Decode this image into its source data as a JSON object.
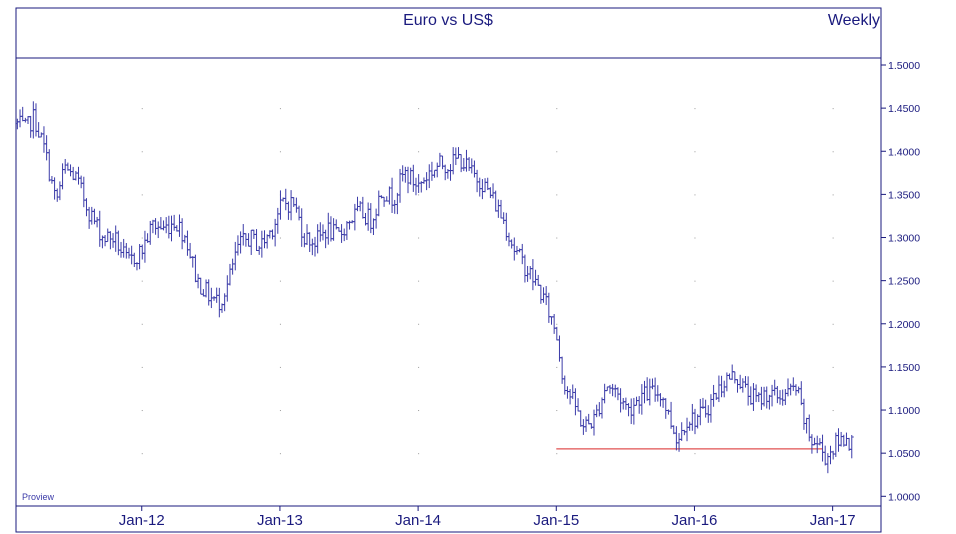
{
  "title": "Euro vs US$",
  "period_label": "Weekly",
  "watermark": "Proview",
  "colors": {
    "frame": "#1a1a7e",
    "bars": "#3a3aa8",
    "support_line": "#e05050",
    "grid": "#9a9a9a"
  },
  "chart_data": {
    "type": "ohlc",
    "title": "Euro vs US$",
    "period": "Weekly",
    "x_range": [
      2011.09,
      2017.35
    ],
    "ylim": [
      0.995,
      1.502
    ],
    "y_ticks": [
      "1.0000",
      "1.0500",
      "1.1000",
      "1.1500",
      "1.2000",
      "1.2500",
      "1.3000",
      "1.3500",
      "1.4000",
      "1.4500",
      "1.5000"
    ],
    "x_ticks": [
      {
        "label": "Jan-12",
        "x": 2012.0
      },
      {
        "label": "Jan-13",
        "x": 2013.0
      },
      {
        "label": "Jan-14",
        "x": 2014.0
      },
      {
        "label": "Jan-15",
        "x": 2015.0
      },
      {
        "label": "Jan-16",
        "x": 2016.0
      },
      {
        "label": "Jan-17",
        "x": 2017.0
      }
    ],
    "grid": "dotted",
    "price_path": [
      [
        2011.1,
        1.432
      ],
      [
        2011.16,
        1.425
      ],
      [
        2011.22,
        1.44
      ],
      [
        2011.3,
        1.4
      ],
      [
        2011.38,
        1.34
      ],
      [
        2011.44,
        1.38
      ],
      [
        2011.52,
        1.37
      ],
      [
        2011.62,
        1.33
      ],
      [
        2011.72,
        1.3
      ],
      [
        2011.8,
        1.3
      ],
      [
        2011.9,
        1.27
      ],
      [
        2012.0,
        1.285
      ],
      [
        2012.08,
        1.315
      ],
      [
        2012.16,
        1.31
      ],
      [
        2012.24,
        1.32
      ],
      [
        2012.32,
        1.3
      ],
      [
        2012.4,
        1.25
      ],
      [
        2012.5,
        1.23
      ],
      [
        2012.56,
        1.225
      ],
      [
        2012.62,
        1.245
      ],
      [
        2012.7,
        1.29
      ],
      [
        2012.78,
        1.3
      ],
      [
        2012.86,
        1.29
      ],
      [
        2012.94,
        1.31
      ],
      [
        2013.02,
        1.34
      ],
      [
        2013.1,
        1.34
      ],
      [
        2013.18,
        1.3
      ],
      [
        2013.26,
        1.295
      ],
      [
        2013.34,
        1.31
      ],
      [
        2013.42,
        1.3
      ],
      [
        2013.5,
        1.32
      ],
      [
        2013.58,
        1.33
      ],
      [
        2013.66,
        1.32
      ],
      [
        2013.74,
        1.355
      ],
      [
        2013.82,
        1.345
      ],
      [
        2013.9,
        1.375
      ],
      [
        2014.0,
        1.36
      ],
      [
        2014.08,
        1.375
      ],
      [
        2014.16,
        1.385
      ],
      [
        2014.24,
        1.385
      ],
      [
        2014.3,
        1.393
      ],
      [
        2014.38,
        1.375
      ],
      [
        2014.46,
        1.365
      ],
      [
        2014.54,
        1.345
      ],
      [
        2014.62,
        1.32
      ],
      [
        2014.7,
        1.285
      ],
      [
        2014.78,
        1.265
      ],
      [
        2014.86,
        1.245
      ],
      [
        2014.92,
        1.225
      ],
      [
        2015.0,
        1.19
      ],
      [
        2015.05,
        1.135
      ],
      [
        2015.12,
        1.11
      ],
      [
        2015.2,
        1.08
      ],
      [
        2015.28,
        1.09
      ],
      [
        2015.36,
        1.13
      ],
      [
        2015.44,
        1.12
      ],
      [
        2015.52,
        1.1
      ],
      [
        2015.6,
        1.115
      ],
      [
        2015.68,
        1.12
      ],
      [
        2015.76,
        1.12
      ],
      [
        2015.82,
        1.09
      ],
      [
        2015.88,
        1.065
      ],
      [
        2015.94,
        1.09
      ],
      [
        2016.0,
        1.09
      ],
      [
        2016.06,
        1.095
      ],
      [
        2016.14,
        1.115
      ],
      [
        2016.22,
        1.135
      ],
      [
        2016.3,
        1.14
      ],
      [
        2016.38,
        1.12
      ],
      [
        2016.46,
        1.11
      ],
      [
        2016.52,
        1.12
      ],
      [
        2016.6,
        1.115
      ],
      [
        2016.68,
        1.12
      ],
      [
        2016.74,
        1.125
      ],
      [
        2016.78,
        1.095
      ],
      [
        2016.84,
        1.065
      ],
      [
        2016.9,
        1.06
      ],
      [
        2016.95,
        1.045
      ],
      [
        2017.02,
        1.06
      ],
      [
        2017.1,
        1.07
      ],
      [
        2017.14,
        1.06
      ]
    ],
    "annotations": [
      {
        "type": "support_line",
        "x": [
          2015.0,
          2016.93
        ],
        "y": 1.055
      }
    ]
  }
}
